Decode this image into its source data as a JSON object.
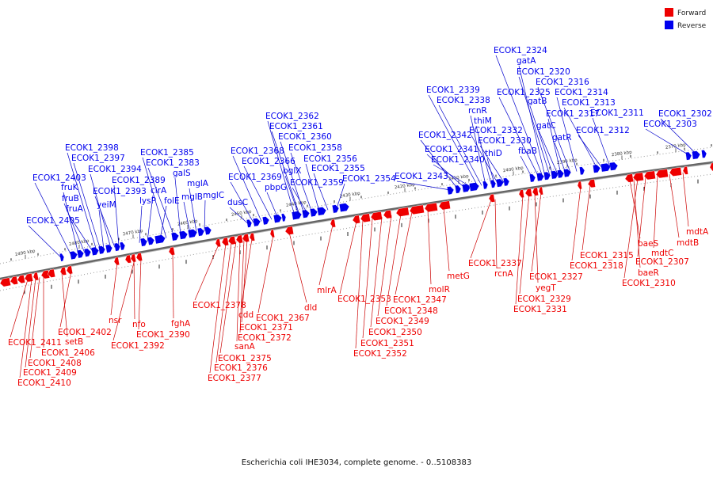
{
  "caption": "Escherichia coli IHE3034, complete genome. - 0..5108383",
  "legend": [
    {
      "label": "Forward",
      "color": "#ee0000"
    },
    {
      "label": "Reverse",
      "color": "#0000ee"
    }
  ],
  "colors": {
    "forward": "#ee0000",
    "reverse": "#0000ee",
    "backbone": "#666666",
    "leader_fwd": "#cc0000",
    "leader_rev": "#0000cc"
  },
  "ticks": [
    "2490 kbp",
    "2480 kbp",
    "2470 kbp",
    "2460 kbp",
    "2450 kbp",
    "2440 kbp",
    "2430 kbp",
    "2420 kbp",
    "2410 kbp",
    "2400 kbp",
    "2390 kbp",
    "2380 kbp",
    "2370 kbp"
  ],
  "reverse_genes": [
    "ECOK1_2405",
    "ECOK1_2403",
    "fruK",
    "fruB",
    "fruA",
    "ECOK1_2398",
    "ECOK1_2397",
    "yeiM",
    "ECOK1_2394",
    "ECOK1_2393",
    "ECOK1_2389",
    "lysP",
    "cirA",
    "folE",
    "ECOK1_2385",
    "ECOK1_2383",
    "galS",
    "mglB",
    "mglA",
    "mglC",
    "dusC",
    "ECOK1_2369",
    "ECOK1_2368",
    "ECOK1_2366",
    "pbpG",
    "ECOK1_2362",
    "ECOK1_2361",
    "ECOK1_2360",
    "bglX",
    "ECOK1_2359",
    "ECOK1_2358",
    "ECOK1_2356",
    "ECOK1_2355",
    "ECOK1_2354",
    "ECOK1_2343",
    "ECOK1_2342",
    "ECOK1_2341",
    "ECOK1_2340",
    "ECOK1_2339",
    "ECOK1_2338",
    "rcnR",
    "thiM",
    "ECOK1_2332",
    "thiD",
    "ECOK1_2330",
    "fbaB",
    "ECOK1_2325",
    "ECOK1_2324",
    "gatA",
    "ECOK1_2320",
    "gatB",
    "gatC",
    "ECOK1_2317",
    "gatR",
    "ECOK1_2316",
    "ECOK1_2314",
    "ECOK1_2313",
    "ECOK1_2312",
    "ECOK1_2311",
    "ECOK1_2303",
    "ECOK1_2302"
  ],
  "forward_genes": [
    "ECOK1_2411",
    "ECOK1_2410",
    "ECOK1_2409",
    "ECOK1_2408",
    "ECOK1_2406",
    "setB",
    "ECOK1_2402",
    "nsr",
    "nfo",
    "ECOK1_2392",
    "ECOK1_2390",
    "fghA",
    "ECOK1_2378",
    "ECOK1_2377",
    "ECOK1_2376",
    "ECOK1_2375",
    "sanA",
    "ECOK1_2372",
    "ECOK1_2371",
    "cdd",
    "ECOK1_2367",
    "dld",
    "mlrA",
    "ECOK1_2353",
    "ECOK1_2352",
    "ECOK1_2351",
    "ECOK1_2350",
    "ECOK1_2349",
    "ECOK1_2348",
    "ECOK1_2347",
    "molR",
    "metG",
    "ECOK1_2337",
    "rcnA",
    "ECOK1_2331",
    "ECOK1_2329",
    "yegT",
    "ECOK1_2327",
    "ECOK1_2318",
    "ECOK1_2315",
    "baeS",
    "baeR",
    "ECOK1_2310",
    "ECOK1_2307",
    "mdtC",
    "mdtB",
    "mdtA"
  ]
}
